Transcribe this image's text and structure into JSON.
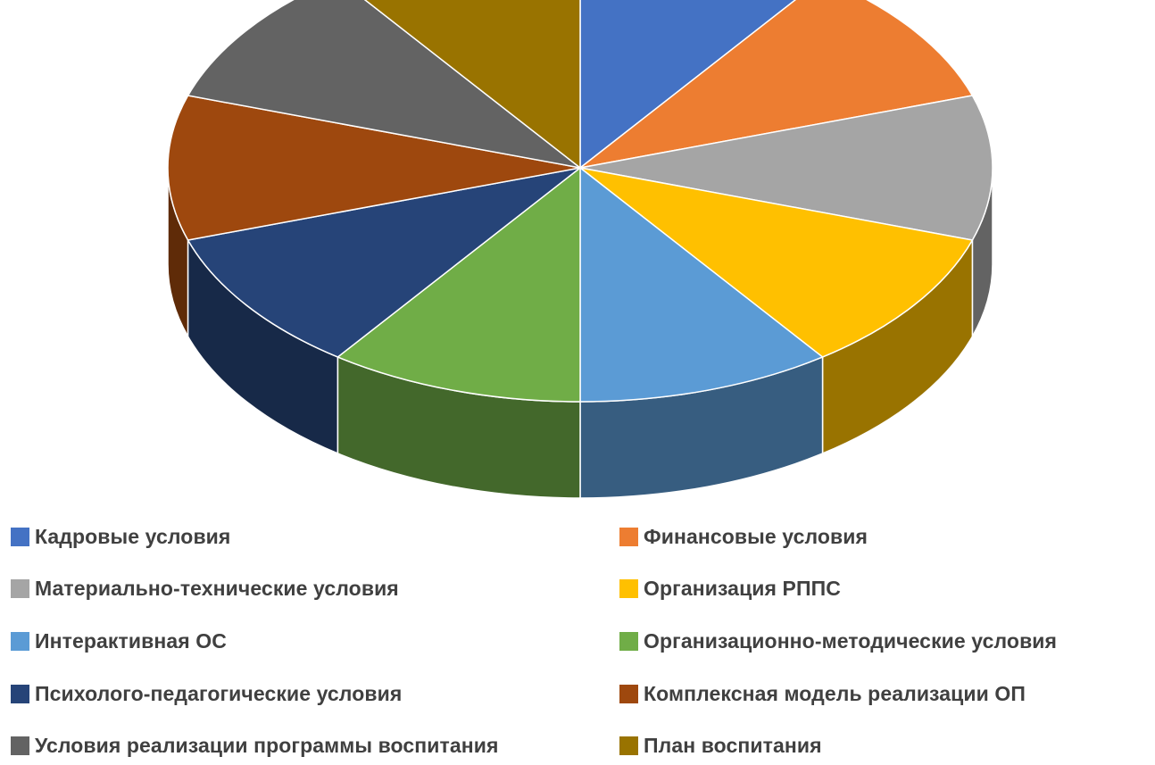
{
  "chart_data": {
    "type": "pie",
    "style": "3d",
    "labels": [
      "Кадровые условия",
      "Финансовые условия",
      "Материально-технические условия",
      "Организация РППС",
      "Интерактивная ОС",
      "Организационно-методические условия",
      "Психолого-педагогические условия",
      "Комплексная модель реализации ОП",
      "Условия реализации программы воспитания",
      "План воспитания"
    ],
    "values": [
      1,
      1,
      1,
      1,
      1,
      1,
      1,
      1,
      1,
      1
    ],
    "colors": [
      "#4472C4",
      "#ED7D31",
      "#A5A5A5",
      "#FFC000",
      "#5B9BD5",
      "#70AD47",
      "#264478",
      "#9E480E",
      "#636363",
      "#997300"
    ],
    "legend_position": "bottom"
  }
}
